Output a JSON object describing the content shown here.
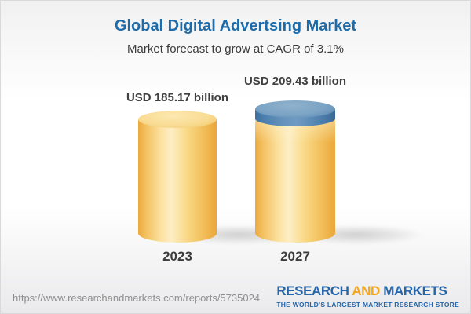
{
  "header": {
    "title": "Global Digital Advertsing Market",
    "subtitle": "Market forecast to grow at CAGR of 3.1%"
  },
  "chart_data": {
    "type": "bar",
    "style": "3d-cylinder",
    "title": "Global Digital Advertsing Market",
    "subtitle": "Market forecast to grow at CAGR of 3.1%",
    "categories": [
      "2023",
      "2027"
    ],
    "values": [
      185.17,
      209.43
    ],
    "value_labels": [
      "USD 185.17 billion",
      "USD 209.43 billion"
    ],
    "unit": "USD billion",
    "cagr_percent": 3.1,
    "legend_position": "none",
    "grid": false,
    "colors": {
      "bar_base": "#f6cd74",
      "bar_highlight": "#fdeec6",
      "bar_edge": "#eba93e",
      "growth_cap": "#6e9ac2",
      "growth_cap_dark": "#3d709e",
      "title_blue": "#1d6ba8",
      "label_dark": "#404040"
    }
  },
  "footer": {
    "url": "https://www.researchandmarkets.com/reports/5735024",
    "logo": {
      "word1": "RESEARCH",
      "word2": "AND",
      "word3": "MARKETS",
      "tagline": "THE WORLD'S LARGEST MARKET RESEARCH STORE",
      "blue": "#2565a8",
      "orange": "#f2a71e"
    }
  }
}
